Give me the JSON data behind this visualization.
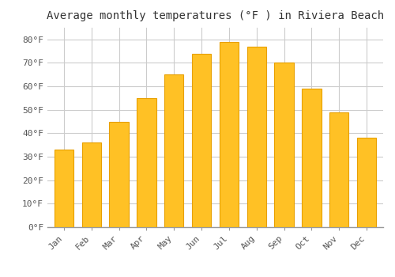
{
  "title": "Average monthly temperatures (°F ) in Riviera Beach",
  "months": [
    "Jan",
    "Feb",
    "Mar",
    "Apr",
    "May",
    "Jun",
    "Jul",
    "Aug",
    "Sep",
    "Oct",
    "Nov",
    "Dec"
  ],
  "values": [
    33,
    36,
    45,
    55,
    65,
    74,
    79,
    77,
    70,
    59,
    49,
    38
  ],
  "bar_color": "#FFC125",
  "bar_edge_color": "#E8A000",
  "background_color": "#FFFFFF",
  "grid_color": "#CCCCCC",
  "ylim": [
    0,
    85
  ],
  "yticks": [
    0,
    10,
    20,
    30,
    40,
    50,
    60,
    70,
    80
  ],
  "ytick_labels": [
    "0°F",
    "10°F",
    "20°F",
    "30°F",
    "40°F",
    "50°F",
    "60°F",
    "70°F",
    "80°F"
  ],
  "title_fontsize": 10,
  "tick_fontsize": 8,
  "font_family": "monospace",
  "bar_width": 0.7
}
